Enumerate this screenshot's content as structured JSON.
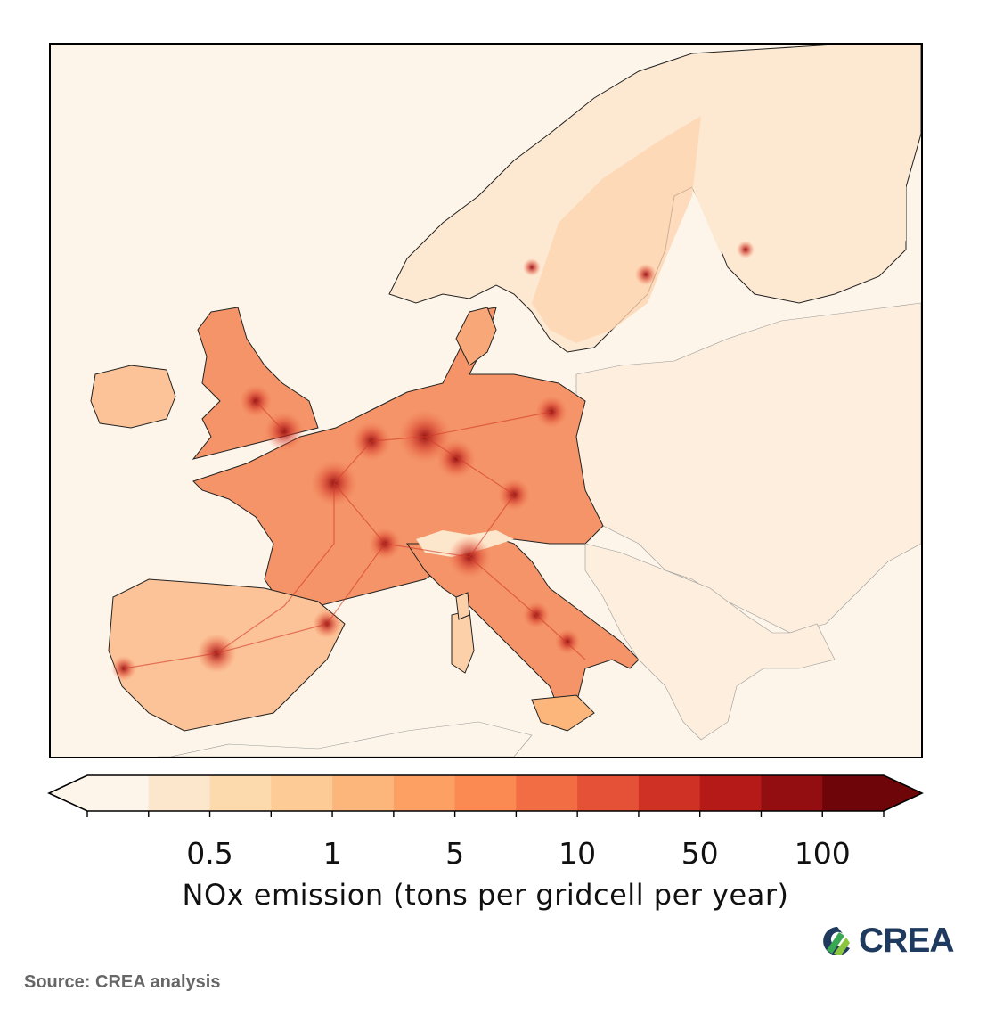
{
  "map": {
    "region": "Europe",
    "variable": "NOx emission",
    "colorbar": {
      "label": "NOx emission (tons per gridcell per year)",
      "tick_labels": [
        "0.5",
        "1",
        "5",
        "10",
        "50",
        "100"
      ],
      "colors": [
        "#fdf5e9",
        "#fde7cc",
        "#fdd9ae",
        "#fdcb95",
        "#fcb67c",
        "#fca064",
        "#fa8a52",
        "#f26c44",
        "#e45136",
        "#cf3125",
        "#b51918",
        "#930e10",
        "#6e0508"
      ],
      "extend": "both"
    },
    "hotspots": [
      "London",
      "Paris",
      "Madrid",
      "Milan",
      "Ruhr",
      "Berlin",
      "Lyon",
      "Barcelona",
      "Stockholm",
      "Helsinki"
    ]
  },
  "footer": {
    "source": "Source: CREA analysis",
    "logo_text": "CREA"
  }
}
